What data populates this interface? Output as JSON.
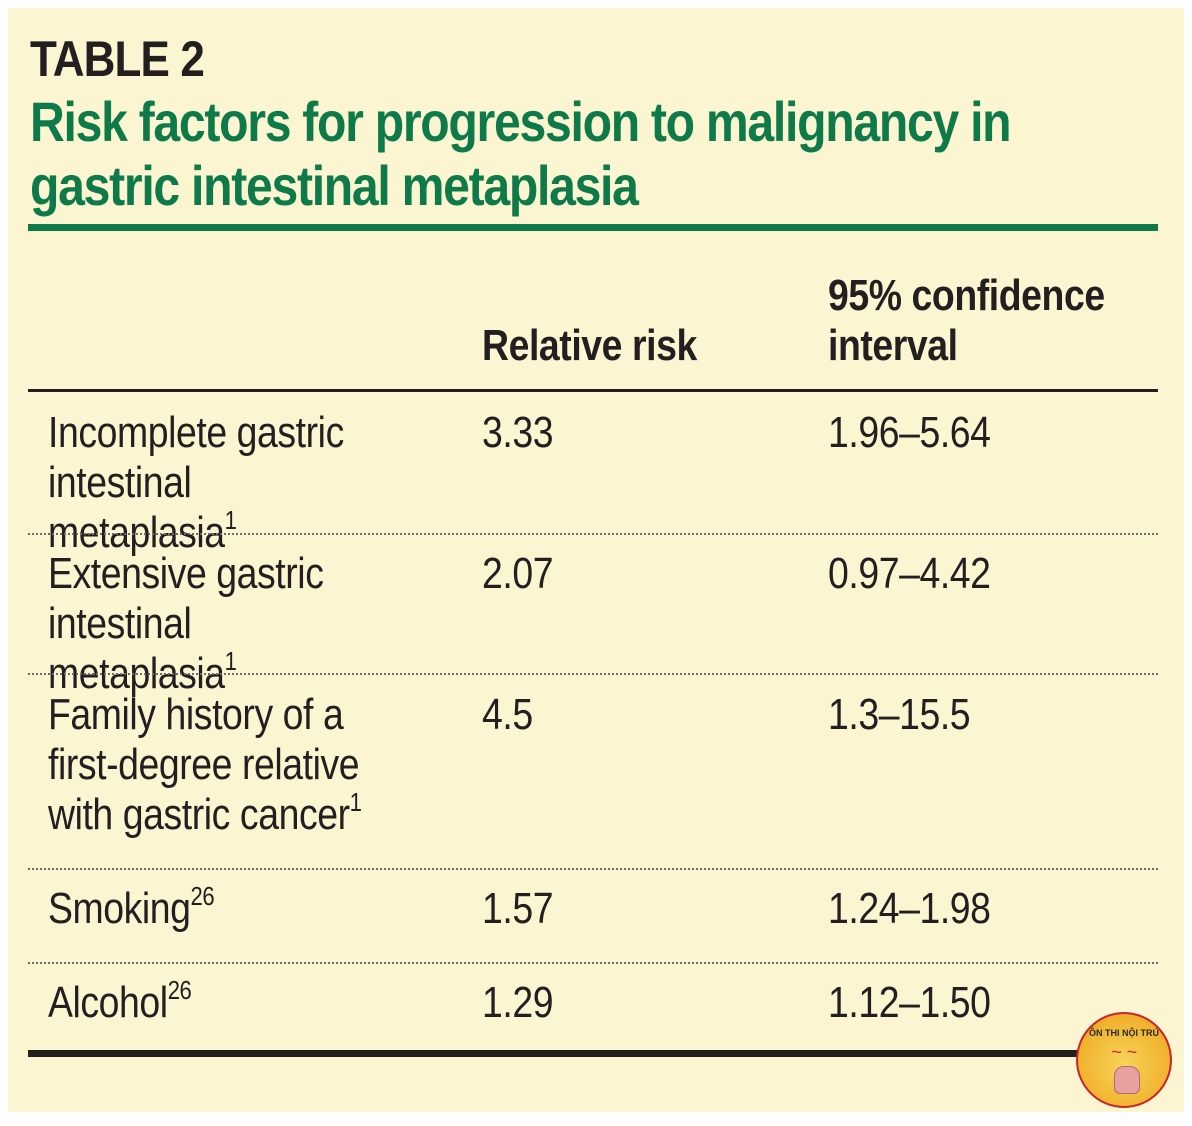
{
  "table": {
    "label": "TABLE 2",
    "title": "Risk factors for progression to malignancy in gastric intestinal metaplasia",
    "columns": [
      "",
      "Relative risk",
      "95% confidence interval"
    ],
    "rows": [
      {
        "factor": "Incomplete gastric intestinal metaplasia",
        "ref": "1",
        "relative_risk": "3.33",
        "ci": "1.96–5.64"
      },
      {
        "factor": "Extensive gastric intestinal metaplasia",
        "ref": "1",
        "relative_risk": "2.07",
        "ci": "0.97–4.42"
      },
      {
        "factor": "Family history of a first-degree relative with gastric cancer",
        "ref": "1",
        "relative_risk": "4.5",
        "ci": "1.3–15.5"
      },
      {
        "factor": "Smoking",
        "ref": "26",
        "relative_risk": "1.57",
        "ci": "1.24–1.98"
      },
      {
        "factor": "Alcohol",
        "ref": "26",
        "relative_risk": "1.29",
        "ci": "1.12–1.50"
      }
    ]
  },
  "watermark": {
    "text": "ÔN THI NỘI TRÚ"
  },
  "colors": {
    "title": "#0e7a4a",
    "background": "#fcf5d2",
    "text": "#231f20"
  }
}
